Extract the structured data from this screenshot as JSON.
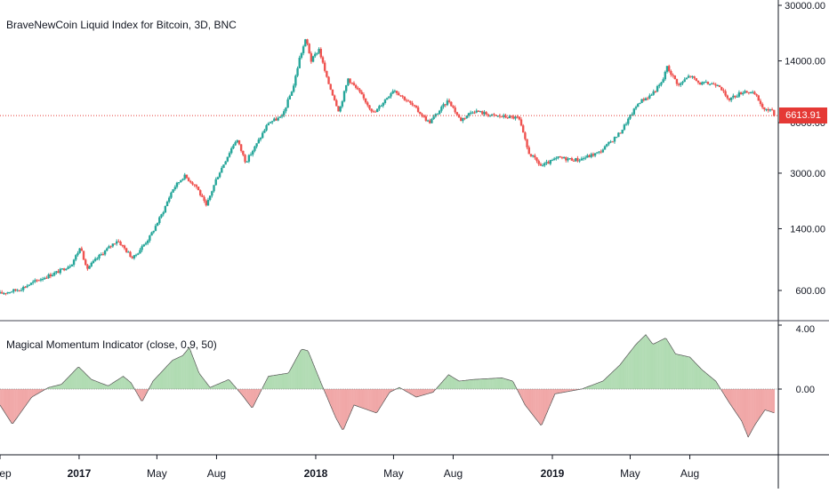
{
  "main_title": "BraveNewCoin Liquid Index for Bitcoin, 3D, BNC",
  "indicator_title": "Magical Momentum Indicator (close, 0.9, 50)",
  "last_price_label": "6613.91",
  "colors": {
    "up": "#26a69a",
    "down": "#ef5350",
    "hist_pos": "#a5d6a7",
    "hist_neg": "#ef9a9a",
    "price_line": "#e53935",
    "axis": "#131722",
    "separator": "#434651"
  },
  "chart_data": [
    {
      "type": "candlestick",
      "title": "BraveNewCoin Liquid Index for Bitcoin, 3D, BNC",
      "y_scale": "log",
      "y_ticks": [
        "30000.00",
        "14000.00",
        "6000.00",
        "3000.00",
        "1400.00",
        "600.00"
      ],
      "x_ticks": [
        "Sep",
        "2017",
        "May",
        "Aug",
        "2018",
        "May",
        "Aug",
        "2019",
        "May",
        "Aug"
      ],
      "last_price": 6613.91,
      "series": [
        {
          "values": [
            [
              "2016-09-01",
              575
            ],
            [
              "2016-10-01",
              610
            ],
            [
              "2016-11-01",
              700
            ],
            [
              "2016-12-01",
              780
            ],
            [
              "2016-12-20",
              860
            ],
            [
              "2017-01-04",
              1100
            ],
            [
              "2017-01-12",
              800
            ],
            [
              "2017-02-01",
              960
            ],
            [
              "2017-03-01",
              1200
            ],
            [
              "2017-03-25",
              930
            ],
            [
              "2017-04-20",
              1250
            ],
            [
              "2017-05-10",
              1750
            ],
            [
              "2017-05-25",
              2400
            ],
            [
              "2017-06-12",
              2900
            ],
            [
              "2017-07-01",
              2500
            ],
            [
              "2017-07-16",
              1900
            ],
            [
              "2017-08-01",
              2800
            ],
            [
              "2017-08-25",
              4300
            ],
            [
              "2017-09-01",
              4800
            ],
            [
              "2017-09-15",
              3500
            ],
            [
              "2017-10-01",
              4400
            ],
            [
              "2017-10-20",
              6000
            ],
            [
              "2017-11-10",
              6500
            ],
            [
              "2017-11-28",
              10000
            ],
            [
              "2017-12-07",
              14500
            ],
            [
              "2017-12-17",
              19000
            ],
            [
              "2017-12-25",
              14000
            ],
            [
              "2018-01-06",
              16500
            ],
            [
              "2018-01-18",
              11000
            ],
            [
              "2018-02-06",
              7000
            ],
            [
              "2018-02-20",
              11000
            ],
            [
              "2018-03-10",
              9000
            ],
            [
              "2018-04-01",
              6800
            ],
            [
              "2018-05-01",
              9500
            ],
            [
              "2018-06-01",
              7500
            ],
            [
              "2018-06-25",
              6000
            ],
            [
              "2018-07-25",
              8200
            ],
            [
              "2018-08-12",
              6200
            ],
            [
              "2018-09-01",
              7100
            ],
            [
              "2018-10-01",
              6600
            ],
            [
              "2018-11-10",
              6400
            ],
            [
              "2018-11-25",
              4000
            ],
            [
              "2018-12-15",
              3300
            ],
            [
              "2019-01-10",
              3700
            ],
            [
              "2019-02-10",
              3600
            ],
            [
              "2019-03-15",
              4000
            ],
            [
              "2019-04-15",
              5200
            ],
            [
              "2019-05-15",
              8000
            ],
            [
              "2019-06-01",
              8700
            ],
            [
              "2019-06-20",
              10500
            ],
            [
              "2019-06-26",
              13000
            ],
            [
              "2019-07-15",
              10000
            ],
            [
              "2019-08-01",
              11500
            ],
            [
              "2019-08-15",
              10300
            ],
            [
              "2019-09-15",
              10200
            ],
            [
              "2019-09-28",
              8200
            ],
            [
              "2019-10-25",
              9300
            ],
            [
              "2019-11-10",
              8800
            ],
            [
              "2019-11-25",
              7000
            ],
            [
              "2019-12-05",
              7300
            ],
            [
              "2019-12-10",
              6614
            ]
          ]
        }
      ]
    },
    {
      "type": "area",
      "title": "Magical Momentum Indicator (close, 0.9, 50)",
      "y_ticks": [
        "4.00",
        "0.00"
      ],
      "series": [
        {
          "values": [
            [
              "2016-09-01",
              -1.0
            ],
            [
              "2016-09-20",
              -2.2
            ],
            [
              "2016-10-20",
              -0.5
            ],
            [
              "2016-11-15",
              0.1
            ],
            [
              "2016-12-05",
              0.3
            ],
            [
              "2016-12-31",
              1.4
            ],
            [
              "2017-01-20",
              0.6
            ],
            [
              "2017-02-15",
              0.2
            ],
            [
              "2017-03-10",
              0.8
            ],
            [
              "2017-03-22",
              0.4
            ],
            [
              "2017-04-08",
              -0.8
            ],
            [
              "2017-04-25",
              0.5
            ],
            [
              "2017-05-25",
              1.8
            ],
            [
              "2017-06-10",
              2.1
            ],
            [
              "2017-06-20",
              2.6
            ],
            [
              "2017-07-05",
              1.0
            ],
            [
              "2017-07-22",
              0.1
            ],
            [
              "2017-08-20",
              0.6
            ],
            [
              "2017-09-10",
              -0.4
            ],
            [
              "2017-09-25",
              -1.2
            ],
            [
              "2017-10-20",
              0.8
            ],
            [
              "2017-11-20",
              1.0
            ],
            [
              "2017-12-10",
              2.5
            ],
            [
              "2017-12-20",
              2.4
            ],
            [
              "2018-01-10",
              0.3
            ],
            [
              "2018-02-01",
              -1.8
            ],
            [
              "2018-02-12",
              -2.6
            ],
            [
              "2018-03-01",
              -1.0
            ],
            [
              "2018-04-05",
              -1.5
            ],
            [
              "2018-04-25",
              -0.2
            ],
            [
              "2018-05-10",
              0.1
            ],
            [
              "2018-06-05",
              -0.5
            ],
            [
              "2018-07-01",
              -0.2
            ],
            [
              "2018-07-25",
              0.9
            ],
            [
              "2018-08-10",
              0.5
            ],
            [
              "2018-09-01",
              0.6
            ],
            [
              "2018-10-15",
              0.7
            ],
            [
              "2018-11-01",
              0.5
            ],
            [
              "2018-11-20",
              -1.0
            ],
            [
              "2018-12-15",
              -2.3
            ],
            [
              "2019-01-05",
              -0.3
            ],
            [
              "2019-02-15",
              0.0
            ],
            [
              "2019-03-20",
              0.5
            ],
            [
              "2019-04-15",
              1.5
            ],
            [
              "2019-05-10",
              2.8
            ],
            [
              "2019-05-25",
              3.4
            ],
            [
              "2019-06-05",
              2.8
            ],
            [
              "2019-06-25",
              3.2
            ],
            [
              "2019-07-10",
              2.2
            ],
            [
              "2019-08-01",
              2.0
            ],
            [
              "2019-08-20",
              1.2
            ],
            [
              "2019-09-10",
              0.5
            ],
            [
              "2019-09-30",
              -0.8
            ],
            [
              "2019-10-20",
              -2.0
            ],
            [
              "2019-10-30",
              -3.0
            ],
            [
              "2019-11-10",
              -2.2
            ],
            [
              "2019-11-25",
              -1.3
            ],
            [
              "2019-12-10",
              -1.5
            ]
          ]
        }
      ]
    }
  ]
}
